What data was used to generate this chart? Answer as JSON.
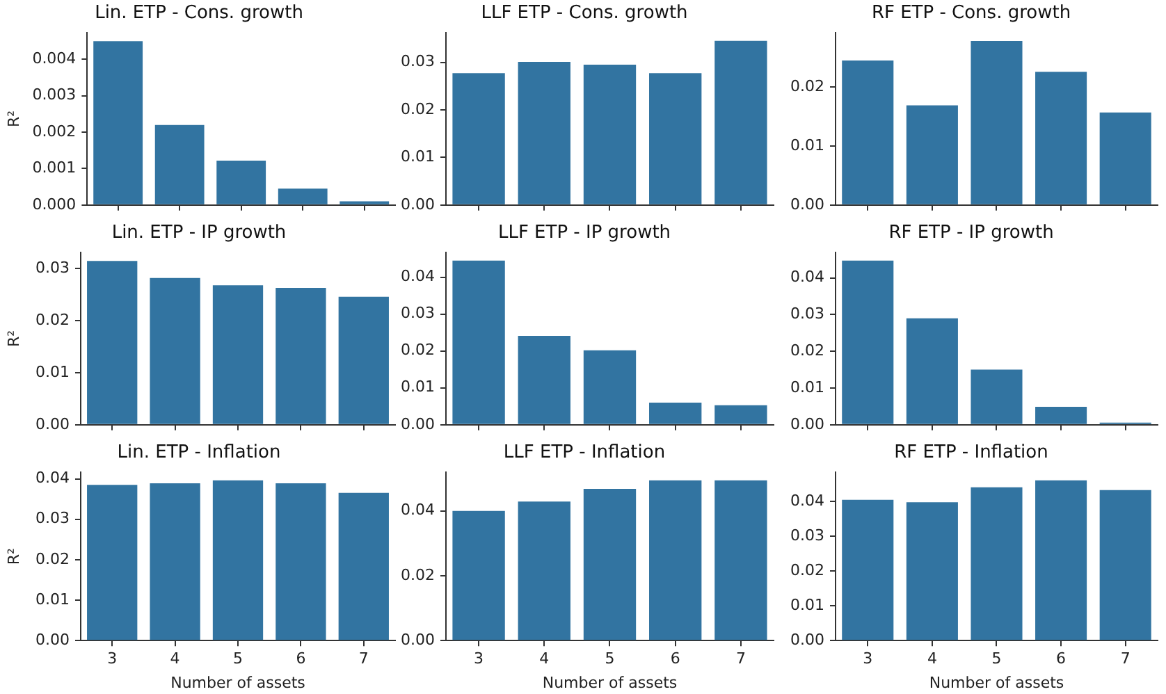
{
  "chart_data": [
    {
      "type": "bar",
      "title": "Lin. ETP - Cons. growth",
      "ylabel": "R²",
      "categories": [
        "3",
        "4",
        "5",
        "6",
        "7"
      ],
      "values": [
        0.0045,
        0.0022,
        0.00122,
        0.00045,
        0.0001
      ],
      "color": "#3274a1",
      "ylim": [
        0,
        0.00473
      ],
      "yticks": [
        {
          "value": 0,
          "label": "0.000"
        },
        {
          "value": 0.001,
          "label": "0.001"
        },
        {
          "value": 0.002,
          "label": "0.002"
        },
        {
          "value": 0.003,
          "label": "0.003"
        },
        {
          "value": 0.004,
          "label": "0.004"
        }
      ],
      "tick_labels": "y"
    },
    {
      "type": "bar",
      "title": "LLF ETP - Cons. growth",
      "categories": [
        "3",
        "4",
        "5",
        "6",
        "7"
      ],
      "values": [
        0.0277,
        0.0301,
        0.0295,
        0.0277,
        0.0345
      ],
      "color": "#3274a1",
      "ylim": [
        0,
        0.0362
      ],
      "yticks": [
        {
          "value": 0,
          "label": "0.00"
        },
        {
          "value": 0.01,
          "label": "0.01"
        },
        {
          "value": 0.02,
          "label": "0.02"
        },
        {
          "value": 0.03,
          "label": "0.03"
        }
      ],
      "tick_labels": "y"
    },
    {
      "type": "bar",
      "title": "RF ETP - Cons. growth",
      "categories": [
        "3",
        "4",
        "5",
        "6",
        "7"
      ],
      "values": [
        0.0245,
        0.0169,
        0.0278,
        0.0226,
        0.0157
      ],
      "color": "#3274a1",
      "ylim": [
        0,
        0.0292
      ],
      "yticks": [
        {
          "value": 0,
          "label": "0.00"
        },
        {
          "value": 0.01,
          "label": "0.01"
        },
        {
          "value": 0.02,
          "label": "0.02"
        }
      ],
      "tick_labels": "y"
    },
    {
      "type": "bar",
      "title": "Lin. ETP - IP growth",
      "ylabel": "R²",
      "categories": [
        "3",
        "4",
        "5",
        "6",
        "7"
      ],
      "values": [
        0.0315,
        0.0282,
        0.0268,
        0.0263,
        0.0246
      ],
      "color": "#3274a1",
      "ylim": [
        0,
        0.0331
      ],
      "yticks": [
        {
          "value": 0,
          "label": "0.00"
        },
        {
          "value": 0.01,
          "label": "0.01"
        },
        {
          "value": 0.02,
          "label": "0.02"
        },
        {
          "value": 0.03,
          "label": "0.03"
        }
      ],
      "tick_labels": "y"
    },
    {
      "type": "bar",
      "title": "LLF ETP - IP growth",
      "categories": [
        "3",
        "4",
        "5",
        "6",
        "7"
      ],
      "values": [
        0.0445,
        0.0241,
        0.0202,
        0.006,
        0.0053
      ],
      "color": "#3274a1",
      "ylim": [
        0,
        0.0467
      ],
      "yticks": [
        {
          "value": 0,
          "label": "0.00"
        },
        {
          "value": 0.01,
          "label": "0.01"
        },
        {
          "value": 0.02,
          "label": "0.02"
        },
        {
          "value": 0.03,
          "label": "0.03"
        },
        {
          "value": 0.04,
          "label": "0.04"
        }
      ],
      "tick_labels": "y"
    },
    {
      "type": "bar",
      "title": "RF ETP - IP growth",
      "categories": [
        "3",
        "4",
        "5",
        "6",
        "7"
      ],
      "values": [
        0.0447,
        0.029,
        0.015,
        0.0049,
        0.0006
      ],
      "color": "#3274a1",
      "ylim": [
        0,
        0.0469
      ],
      "yticks": [
        {
          "value": 0,
          "label": "0.00"
        },
        {
          "value": 0.01,
          "label": "0.01"
        },
        {
          "value": 0.02,
          "label": "0.02"
        },
        {
          "value": 0.03,
          "label": "0.03"
        },
        {
          "value": 0.04,
          "label": "0.04"
        }
      ],
      "tick_labels": "y"
    },
    {
      "type": "bar",
      "title": "Lin. ETP - Inflation",
      "ylabel": "R²",
      "xlabel": "Number of assets",
      "categories": [
        "3",
        "4",
        "5",
        "6",
        "7"
      ],
      "values": [
        0.0385,
        0.0389,
        0.0396,
        0.0389,
        0.0365
      ],
      "color": "#3274a1",
      "ylim": [
        0,
        0.0416
      ],
      "yticks": [
        {
          "value": 0,
          "label": "0.00"
        },
        {
          "value": 0.01,
          "label": "0.01"
        },
        {
          "value": 0.02,
          "label": "0.02"
        },
        {
          "value": 0.03,
          "label": "0.03"
        },
        {
          "value": 0.04,
          "label": "0.04"
        }
      ]
    },
    {
      "type": "bar",
      "title": "LLF ETP - Inflation",
      "xlabel": "Number of assets",
      "categories": [
        "3",
        "4",
        "5",
        "6",
        "7"
      ],
      "values": [
        0.04,
        0.0429,
        0.0468,
        0.0494,
        0.0494
      ],
      "color": "#3274a1",
      "ylim": [
        0,
        0.0519
      ],
      "yticks": [
        {
          "value": 0,
          "label": "0.00"
        },
        {
          "value": 0.02,
          "label": "0.02"
        },
        {
          "value": 0.04,
          "label": "0.04"
        }
      ]
    },
    {
      "type": "bar",
      "title": "RF ETP - Inflation",
      "xlabel": "Number of assets",
      "categories": [
        "3",
        "4",
        "5",
        "6",
        "7"
      ],
      "values": [
        0.0405,
        0.0398,
        0.0441,
        0.0461,
        0.0433
      ],
      "color": "#3274a1",
      "ylim": [
        0,
        0.0484
      ],
      "yticks": [
        {
          "value": 0,
          "label": "0.00"
        },
        {
          "value": 0.01,
          "label": "0.01"
        },
        {
          "value": 0.02,
          "label": "0.02"
        },
        {
          "value": 0.03,
          "label": "0.03"
        },
        {
          "value": 0.04,
          "label": "0.04"
        }
      ]
    }
  ]
}
